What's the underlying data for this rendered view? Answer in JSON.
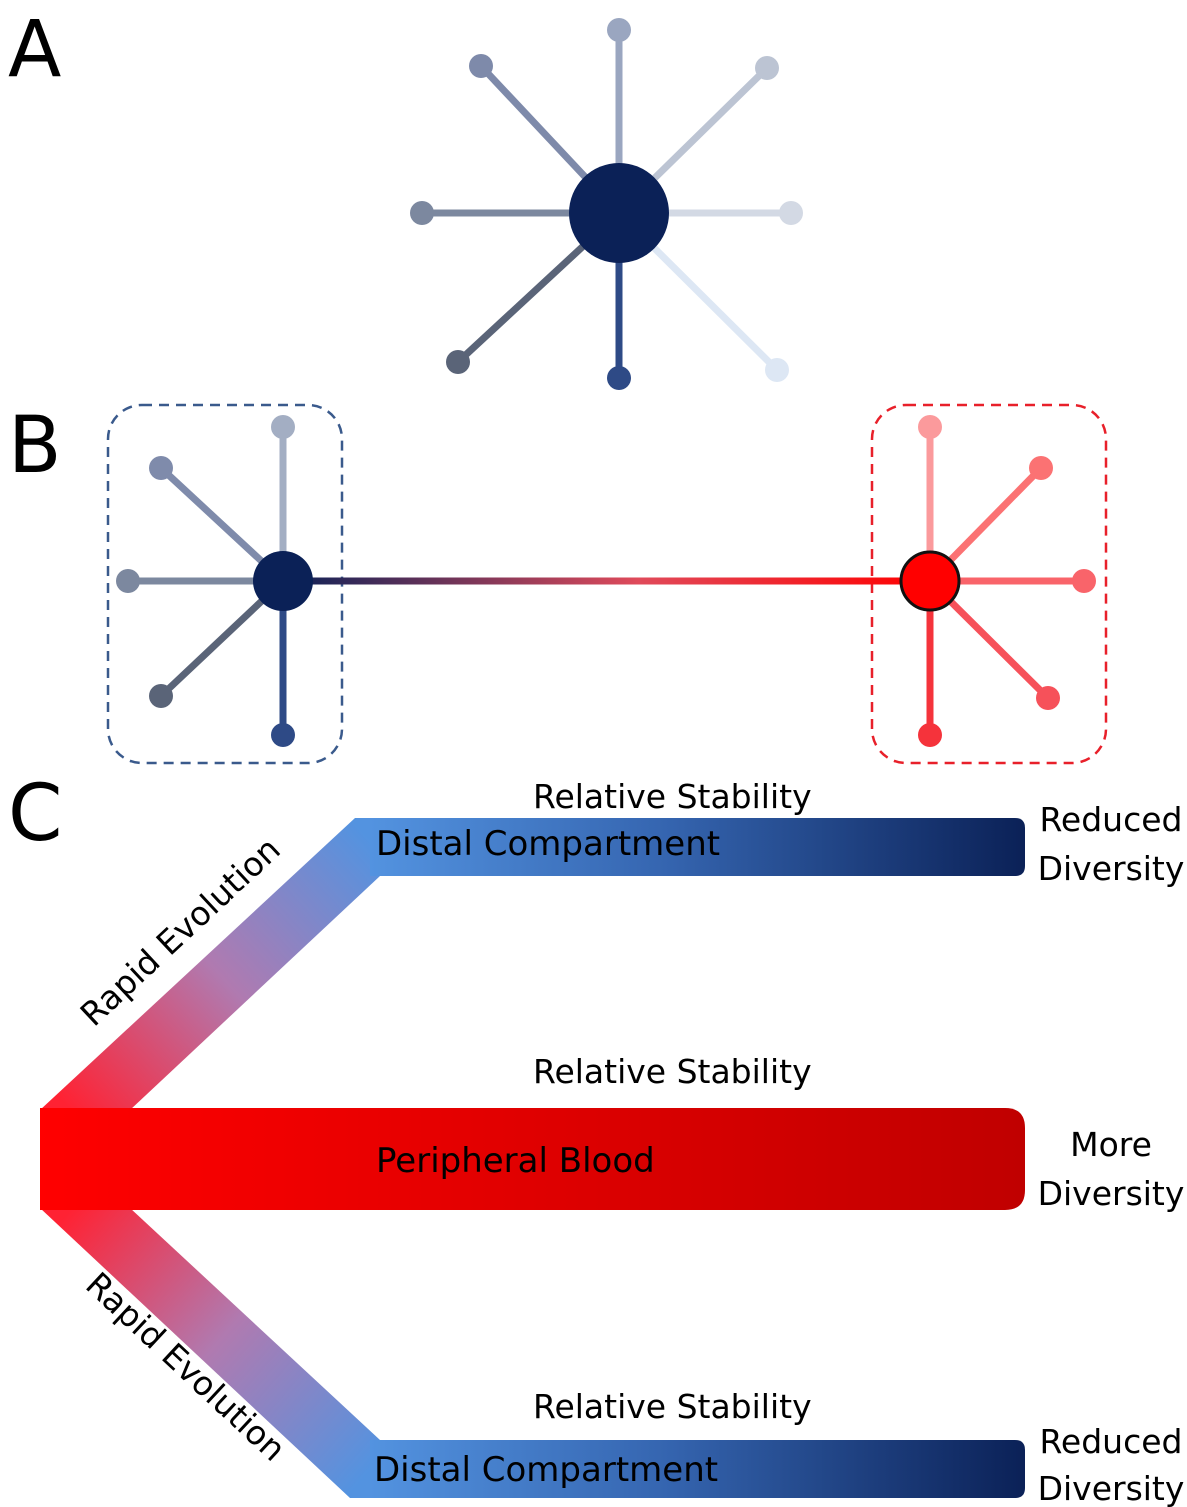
{
  "panels": {
    "a": {
      "label": "A"
    },
    "b": {
      "label": "B"
    },
    "c": {
      "label": "C"
    }
  },
  "colors": {
    "hub_blue": "#0b2157",
    "hub_red": "#ff0000",
    "blue_box_border": "#3a5a8c",
    "red_box_border": "#e8202a",
    "spoke_a": [
      "#9aa6c0",
      "#bcc4d3",
      "#d3d9e4",
      "#dde7f4",
      "#2e4a86",
      "#5a6478",
      "#7c889f",
      "#7e8aaa"
    ],
    "spoke_b_blue": [
      "#a3aec3",
      "#7f8bab",
      "#7c889f",
      "#5a6478",
      "#2e4a86"
    ],
    "spoke_b_red": [
      "#fb9a9c",
      "#fb7273",
      "#f9646a",
      "#f6515a",
      "#f5333b"
    ],
    "band_light_blue": "#5393e0",
    "band_dark_blue": "#0b2157",
    "band_red": "#ff0000",
    "band_dark_red": "#c00000"
  },
  "diagram_c": {
    "upper": {
      "rail_label": "Rapid Evolution",
      "band_label": "Distal Compartment",
      "top_label": "Relative Stability",
      "end_label_line1": "Reduced",
      "end_label_line2": "Diversity"
    },
    "middle": {
      "band_label": "Peripheral Blood",
      "top_label": "Relative Stability",
      "end_label_line1": "More",
      "end_label_line2": "Diversity"
    },
    "lower": {
      "rail_label": "Rapid Evolution",
      "band_label": "Distal Compartment",
      "top_label": "Relative Stability",
      "end_label_line1": "Reduced",
      "end_label_line2": "Diversity"
    }
  }
}
